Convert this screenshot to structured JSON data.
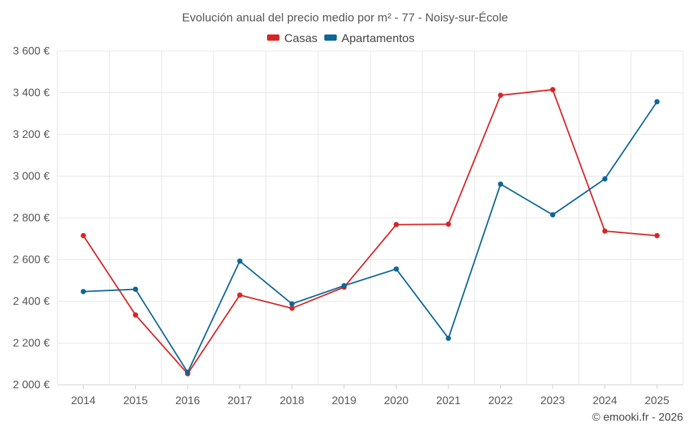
{
  "chart_data": {
    "type": "line",
    "title": "Evolución anual del precio medio por m² - 77 - Noisy-sur-École",
    "categories": [
      "2014",
      "2015",
      "2016",
      "2017",
      "2018",
      "2019",
      "2020",
      "2021",
      "2022",
      "2023",
      "2024",
      "2025"
    ],
    "series": [
      {
        "name": "Casas",
        "color": "#d62728",
        "values": [
          2715,
          2335,
          2053,
          2430,
          2367,
          2468,
          2768,
          2770,
          3388,
          3415,
          2737,
          2715
        ]
      },
      {
        "name": "Apartamentos",
        "color": "#0e6698",
        "values": [
          2447,
          2458,
          2060,
          2593,
          2388,
          2475,
          2555,
          2223,
          2962,
          2815,
          2987,
          3357
        ]
      }
    ],
    "ylim": [
      2000,
      3600
    ],
    "yticks": [
      2000,
      2200,
      2400,
      2600,
      2800,
      3000,
      3200,
      3400,
      3600
    ],
    "ytick_labels": [
      "2 000 €",
      "2 200 €",
      "2 400 €",
      "2 600 €",
      "2 800 €",
      "3 000 €",
      "3 200 €",
      "3 400 €",
      "3 600 €"
    ],
    "xlabel": "",
    "ylabel": "",
    "grid": true,
    "legend_position": "top-center",
    "credit": "© emooki.fr - 2026"
  }
}
